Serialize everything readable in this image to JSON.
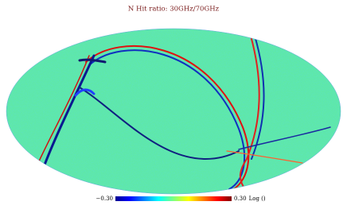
{
  "title": "N Hit ratio: 30GHz/70GHz",
  "colorbar": {
    "ticks": [
      {
        "value": -0.3,
        "label": "−0.30"
      },
      {
        "value": 0.3,
        "label": "0.30"
      }
    ],
    "unit": "Log ()"
  }
}
